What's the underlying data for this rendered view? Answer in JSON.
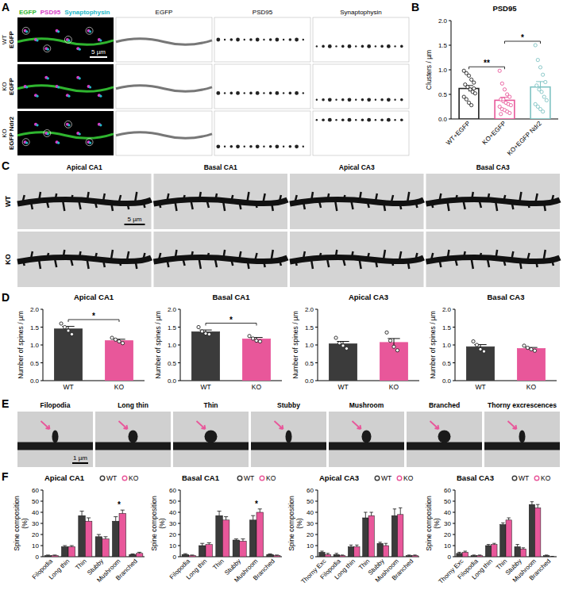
{
  "chart_data": [
    {
      "type": "bar",
      "title": "PSD95",
      "ylabel": "Clusters / µm",
      "categories": [
        "WT+EGFP",
        "KO+EGFP",
        "KO+EGFP Ndr2"
      ],
      "values": [
        0.62,
        0.38,
        0.65
      ],
      "errors": [
        0.06,
        0.06,
        0.11
      ],
      "points": [
        [
          0.98,
          0.93,
          0.88,
          0.8,
          0.74,
          0.7,
          0.65,
          0.6,
          0.55,
          0.52,
          0.45,
          0.4,
          0.33,
          0.28,
          0.62
        ],
        [
          0.98,
          0.72,
          0.6,
          0.5,
          0.45,
          0.4,
          0.36,
          0.33,
          0.3,
          0.28,
          0.25,
          0.2,
          0.18,
          0.15,
          0.12,
          0.1,
          0.4
        ],
        [
          1.5,
          1.2,
          1.05,
          0.9,
          0.75,
          0.68,
          0.6,
          0.55,
          0.45,
          0.38,
          0.3,
          0.25,
          0.2,
          0.15
        ]
      ],
      "colors": [
        "#222222",
        "#e8579a",
        "#7fc3c3"
      ],
      "ylim": [
        0,
        2
      ],
      "yticks": [
        {
          "value": 0,
          "label": "0.0"
        },
        {
          "value": 0.5,
          "label": "0.5"
        },
        {
          "value": 1,
          "label": "1.0"
        },
        {
          "value": 1.5,
          "label": "1.5"
        },
        {
          "value": 2,
          "label": "2.0"
        }
      ],
      "annotations": [
        {
          "text": "**",
          "between": [
            "WT+EGFP",
            "KO+EGFP"
          ]
        },
        {
          "text": "*",
          "between": [
            "KO+EGFP",
            "KO+EGFP Ndr2"
          ]
        }
      ]
    },
    {
      "type": "bar",
      "title": "Apical CA1",
      "ylabel": "Number of spines / µm",
      "categories": [
        "WT",
        "KO"
      ],
      "values": [
        1.45,
        1.12
      ],
      "errors": [
        0.07,
        0.04
      ],
      "points": [
        [
          1.6,
          1.5,
          1.4,
          1.3
        ],
        [
          1.2,
          1.15,
          1.1,
          1.05
        ]
      ],
      "colors": [
        "#3b3b3b",
        "#e8579a"
      ],
      "ylim": [
        0,
        2
      ],
      "yticks": [
        {
          "value": 0,
          "label": "0.0"
        },
        {
          "value": 0.5,
          "label": "0.5"
        },
        {
          "value": 1,
          "label": "1.0"
        },
        {
          "value": 1.5,
          "label": "1.5"
        },
        {
          "value": 2,
          "label": "2.0"
        }
      ],
      "annotations": [
        {
          "text": "*",
          "between": [
            "WT",
            "KO"
          ]
        }
      ]
    },
    {
      "type": "bar",
      "title": "Basal CA1",
      "ylabel": "Number of spines / µm",
      "categories": [
        "WT",
        "KO"
      ],
      "values": [
        1.37,
        1.17
      ],
      "errors": [
        0.05,
        0.04
      ],
      "points": [
        [
          1.5,
          1.38,
          1.32,
          1.3
        ],
        [
          1.25,
          1.18,
          1.12,
          1.1
        ]
      ],
      "colors": [
        "#3b3b3b",
        "#e8579a"
      ],
      "ylim": [
        0,
        2
      ],
      "yticks": [
        {
          "value": 0,
          "label": "0.0"
        },
        {
          "value": 0.5,
          "label": "0.5"
        },
        {
          "value": 1,
          "label": "1.0"
        },
        {
          "value": 1.5,
          "label": "1.5"
        },
        {
          "value": 2,
          "label": "2.0"
        }
      ],
      "annotations": [
        {
          "text": "*",
          "between": [
            "WT",
            "KO"
          ]
        }
      ]
    },
    {
      "type": "bar",
      "title": "Apical CA3",
      "ylabel": "Number of spines / µm",
      "categories": [
        "WT",
        "KO"
      ],
      "values": [
        1.03,
        1.07
      ],
      "errors": [
        0.07,
        0.11
      ],
      "points": [
        [
          1.2,
          1.05,
          0.98,
          0.9
        ],
        [
          1.35,
          1.12,
          0.95,
          0.85
        ]
      ],
      "colors": [
        "#3b3b3b",
        "#e8579a"
      ],
      "ylim": [
        0,
        2
      ],
      "yticks": [
        {
          "value": 0,
          "label": "0.0"
        },
        {
          "value": 0.5,
          "label": "0.5"
        },
        {
          "value": 1,
          "label": "1.0"
        },
        {
          "value": 1.5,
          "label": "1.5"
        },
        {
          "value": 2,
          "label": "2.0"
        }
      ]
    },
    {
      "type": "bar",
      "title": "Basal CA3",
      "ylabel": "Number of spines / µm",
      "categories": [
        "WT",
        "KO"
      ],
      "values": [
        0.95,
        0.9
      ],
      "errors": [
        0.06,
        0.03
      ],
      "points": [
        [
          1.1,
          1.0,
          0.88,
          0.82
        ],
        [
          0.98,
          0.92,
          0.88,
          0.84
        ]
      ],
      "colors": [
        "#3b3b3b",
        "#e8579a"
      ],
      "ylim": [
        0,
        2
      ],
      "yticks": [
        {
          "value": 0,
          "label": "0.0"
        },
        {
          "value": 0.5,
          "label": "0.5"
        },
        {
          "value": 1,
          "label": "1.0"
        },
        {
          "value": 1.5,
          "label": "1.5"
        },
        {
          "value": 2,
          "label": "2.0"
        }
      ]
    },
    {
      "type": "bar",
      "title": "Apical CA1",
      "ylabel": "Spine composition (%)",
      "categories": [
        "Filopodia",
        "Long thin",
        "Thin",
        "Stubby",
        "Mushroom",
        "Branched"
      ],
      "series": [
        {
          "name": "WT",
          "color": "#3b3b3b",
          "marker": "circle",
          "values": [
            1,
            9,
            37,
            18,
            32,
            2
          ],
          "errors": [
            0.5,
            1,
            4,
            2,
            4,
            0.5
          ]
        },
        {
          "name": "KO",
          "color": "#e8579a",
          "marker": "circle",
          "values": [
            1,
            9,
            32,
            16,
            39,
            3
          ],
          "errors": [
            0.5,
            1,
            3,
            2,
            3,
            1
          ]
        }
      ],
      "ylim": [
        0,
        60
      ],
      "yticks": [
        0,
        10,
        20,
        30,
        40,
        50,
        60
      ],
      "legend": "top-right",
      "annotations": [
        {
          "text": "*",
          "category": "Mushroom"
        }
      ]
    },
    {
      "type": "bar",
      "title": "Basal CA1",
      "ylabel": "Spine composition (%)",
      "categories": [
        "Filopodia",
        "Long thin",
        "Thin",
        "Stubby",
        "Mushroom",
        "Branched"
      ],
      "series": [
        {
          "name": "WT",
          "color": "#3b3b3b",
          "marker": "circle",
          "values": [
            2,
            10,
            37,
            15,
            33,
            2
          ],
          "errors": [
            0.7,
            2,
            4,
            1,
            4,
            0.5
          ]
        },
        {
          "name": "KO",
          "color": "#e8579a",
          "marker": "circle",
          "values": [
            1,
            11,
            33,
            14,
            40,
            1
          ],
          "errors": [
            0.5,
            1.5,
            3,
            2,
            3,
            0.5
          ]
        }
      ],
      "ylim": [
        0,
        60
      ],
      "yticks": [
        0,
        10,
        20,
        30,
        40,
        50,
        60
      ],
      "legend": "top-right",
      "annotations": [
        {
          "text": "*",
          "category": "Mushroom"
        }
      ]
    },
    {
      "type": "bar",
      "title": "Apical CA3",
      "ylabel": "Spine composition (%)",
      "categories": [
        "Thorny Exc",
        "Filopodia",
        "Long thin",
        "Thin",
        "Stubby",
        "Mushroom",
        "Branched"
      ],
      "series": [
        {
          "name": "WT",
          "color": "#3b3b3b",
          "marker": "circle",
          "values": [
            4,
            2,
            9,
            35,
            12,
            37,
            1
          ],
          "errors": [
            1,
            1,
            1.5,
            5,
            1,
            6,
            0.5
          ]
        },
        {
          "name": "KO",
          "color": "#e8579a",
          "marker": "circle",
          "values": [
            2,
            1,
            9,
            37,
            10,
            38,
            1
          ],
          "errors": [
            1,
            0.5,
            1.5,
            3,
            2,
            6,
            0.5
          ]
        }
      ],
      "ylim": [
        0,
        60
      ],
      "yticks": [
        0,
        10,
        20,
        30,
        40,
        50,
        60
      ],
      "legend": "top-right"
    },
    {
      "type": "bar",
      "title": "Basal CA3",
      "ylabel": "Spine composition (%)",
      "categories": [
        "Thorny Exc",
        "Filopodia",
        "Long thin",
        "Thin",
        "Stubby",
        "Mushroom",
        "Branched"
      ],
      "series": [
        {
          "name": "WT",
          "color": "#3b3b3b",
          "marker": "circle",
          "values": [
            3,
            1,
            10,
            29,
            9,
            47,
            1
          ],
          "errors": [
            1,
            0.5,
            1,
            1.5,
            2,
            2.5,
            0.5
          ]
        },
        {
          "name": "KO",
          "color": "#e8579a",
          "marker": "circle",
          "values": [
            4,
            1,
            11,
            33,
            7,
            44,
            0
          ],
          "errors": [
            1,
            0.5,
            1,
            2,
            1,
            3,
            0.3
          ]
        }
      ],
      "ylim": [
        0,
        60
      ],
      "yticks": [
        0,
        10,
        20,
        30,
        40,
        50,
        60
      ],
      "legend": "top-right"
    }
  ],
  "figure": {
    "panel_letters": [
      "A",
      "B",
      "C",
      "D",
      "E",
      "F"
    ],
    "panel_a": {
      "channels": [
        {
          "name": "EGFP",
          "color": "#2fb52f"
        },
        {
          "name": "PSD95",
          "color": "#d63cc8"
        },
        {
          "name": "Synaptophysin",
          "color": "#22b8c8"
        }
      ],
      "columns": [
        "EGFP",
        "PSD95",
        "Synaptophysin"
      ],
      "rows": [
        {
          "genotype": "WT",
          "construct": "EGFP"
        },
        {
          "genotype": "KO",
          "construct": "EGFP"
        },
        {
          "genotype": "KO",
          "construct": "EGFP Ndr2"
        }
      ],
      "scale_bar": "5 µm"
    },
    "panel_c": {
      "columns": [
        "Apical CA1",
        "Basal CA1",
        "Apical CA3",
        "Basal CA3"
      ],
      "rows": [
        "WT",
        "KO"
      ],
      "scale_bar": "5 µm"
    },
    "panel_e": {
      "labels": [
        "Filopodia",
        "Long thin",
        "Thin",
        "Stubby",
        "Mushroom",
        "Branched",
        "Thorny excrescences"
      ],
      "scale_bar": "1 µm"
    }
  }
}
